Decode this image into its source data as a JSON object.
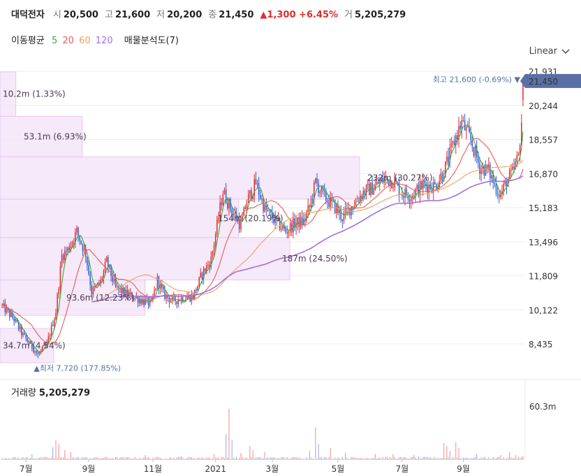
{
  "header": {
    "name": "대덕전자",
    "open_label": "시",
    "open": "20,500",
    "high_label": "고",
    "high": "21,600",
    "low_label": "저",
    "low": "20,200",
    "close_label": "종",
    "close": "21,450",
    "change": "▲1,300 +6.45%",
    "volume_label": "거",
    "volume": "5,205,279"
  },
  "ma_legend": {
    "title": "이동평균",
    "p5": "5",
    "p20": "20",
    "p60": "60",
    "p120": "120",
    "vp": "매물분석도(7)"
  },
  "scale": {
    "label": "Linear"
  },
  "volume_title": {
    "label": "거래량",
    "value": "5,205,279"
  },
  "colors": {
    "up": "#e22b2b",
    "down": "#2b5fd9",
    "ma5": "#3aa83a",
    "ma20": "#e85a5a",
    "ma60": "#f0a060",
    "ma120": "#a070e0",
    "vp": "#f3e2f7",
    "accent": "#5a6fa8"
  },
  "chart_data": {
    "type": "candlestick",
    "title": "대덕전자",
    "y_ticks": [
      "21,931",
      "20,244",
      "18,557",
      "16,870",
      "15,183",
      "13,496",
      "11,809",
      "10,122",
      "8,435"
    ],
    "y_tick_values": [
      21931,
      20244,
      18557,
      16870,
      15183,
      13496,
      11809,
      10122,
      8435
    ],
    "x_ticks": [
      "7월",
      "9월",
      "11월",
      "2021",
      "3월",
      "5월",
      "7월",
      "9월"
    ],
    "x_tick_index": [
      16,
      58,
      101,
      143,
      181,
      225,
      268,
      309
    ],
    "current_price_label": "21,450",
    "current_price": 21450,
    "period_high": {
      "label": "최고",
      "value": "21,600 (-0.69%)",
      "price": 21600,
      "index": 349
    },
    "period_low": {
      "label": "최저",
      "value": "7,720 (177.85%)",
      "price": 7720,
      "index": 24
    },
    "volume_profile": [
      {
        "label": "34.7m (4.54%)",
        "low": 7500,
        "high": 9200,
        "vol": 34.7
      },
      {
        "label": "93.6m (12.23%)",
        "low": 9850,
        "high": 11600,
        "vol": 93.6
      },
      {
        "label": "187m (24.50%)",
        "low": 11600,
        "high": 13700,
        "vol": 187
      },
      {
        "label": "154m (20.19%)",
        "low": 13700,
        "high": 15600,
        "vol": 154
      },
      {
        "label": "232m (30.27%)",
        "low": 15600,
        "high": 17700,
        "vol": 232
      },
      {
        "label": "53.1m (6.93%)",
        "low": 17700,
        "high": 19700,
        "vol": 53.1
      },
      {
        "label": "10.2m (1.33%)",
        "low": 19700,
        "high": 21900,
        "vol": 10.2
      }
    ],
    "volume_axis_tick": "60.3m",
    "volume_axis_value": 60.3,
    "price_anchors": [
      [
        0,
        10300
      ],
      [
        8,
        9650
      ],
      [
        14,
        8850
      ],
      [
        20,
        8300
      ],
      [
        24,
        7900
      ],
      [
        30,
        8400
      ],
      [
        36,
        10050
      ],
      [
        40,
        12800
      ],
      [
        44,
        13100
      ],
      [
        50,
        14000
      ],
      [
        56,
        12900
      ],
      [
        60,
        11000
      ],
      [
        66,
        11500
      ],
      [
        70,
        12500
      ],
      [
        76,
        11200
      ],
      [
        82,
        10950
      ],
      [
        90,
        10700
      ],
      [
        100,
        10400
      ],
      [
        104,
        11600
      ],
      [
        108,
        10900
      ],
      [
        114,
        10550
      ],
      [
        120,
        10700
      ],
      [
        128,
        10800
      ],
      [
        134,
        11900
      ],
      [
        140,
        12600
      ],
      [
        148,
        16000
      ],
      [
        154,
        15000
      ],
      [
        160,
        14300
      ],
      [
        164,
        15500
      ],
      [
        170,
        16400
      ],
      [
        176,
        15100
      ],
      [
        182,
        14600
      ],
      [
        190,
        14000
      ],
      [
        196,
        14400
      ],
      [
        202,
        14500
      ],
      [
        206,
        15200
      ],
      [
        210,
        16450
      ],
      [
        216,
        15700
      ],
      [
        222,
        15300
      ],
      [
        228,
        14700
      ],
      [
        236,
        15400
      ],
      [
        242,
        15950
      ],
      [
        248,
        16150
      ],
      [
        256,
        16600
      ],
      [
        262,
        16500
      ],
      [
        268,
        15900
      ],
      [
        274,
        15800
      ],
      [
        282,
        16300
      ],
      [
        290,
        16250
      ],
      [
        296,
        17000
      ],
      [
        300,
        17800
      ],
      [
        304,
        18700
      ],
      [
        308,
        19400
      ],
      [
        314,
        18500
      ],
      [
        320,
        17200
      ],
      [
        326,
        17000
      ],
      [
        330,
        16300
      ],
      [
        334,
        15800
      ],
      [
        338,
        16500
      ],
      [
        342,
        16900
      ],
      [
        346,
        17700
      ],
      [
        348,
        19500
      ],
      [
        349,
        21450
      ]
    ],
    "volume_spikes": [
      [
        20,
        6
      ],
      [
        34,
        13
      ],
      [
        36,
        20
      ],
      [
        38,
        16
      ],
      [
        42,
        10
      ],
      [
        46,
        8
      ],
      [
        96,
        5
      ],
      [
        120,
        4
      ],
      [
        142,
        6
      ],
      [
        150,
        26
      ],
      [
        152,
        52
      ],
      [
        154,
        20
      ],
      [
        160,
        7
      ],
      [
        166,
        14
      ],
      [
        168,
        10
      ],
      [
        176,
        8
      ],
      [
        206,
        9
      ],
      [
        210,
        33
      ],
      [
        212,
        16
      ],
      [
        220,
        12
      ],
      [
        230,
        7
      ],
      [
        250,
        6
      ],
      [
        262,
        6
      ],
      [
        276,
        5
      ],
      [
        296,
        17
      ],
      [
        298,
        14
      ],
      [
        300,
        9
      ],
      [
        304,
        18
      ],
      [
        306,
        12
      ],
      [
        318,
        6
      ],
      [
        334,
        5
      ],
      [
        340,
        8
      ],
      [
        344,
        5
      ],
      [
        349,
        4
      ]
    ],
    "n_bars": 350
  }
}
